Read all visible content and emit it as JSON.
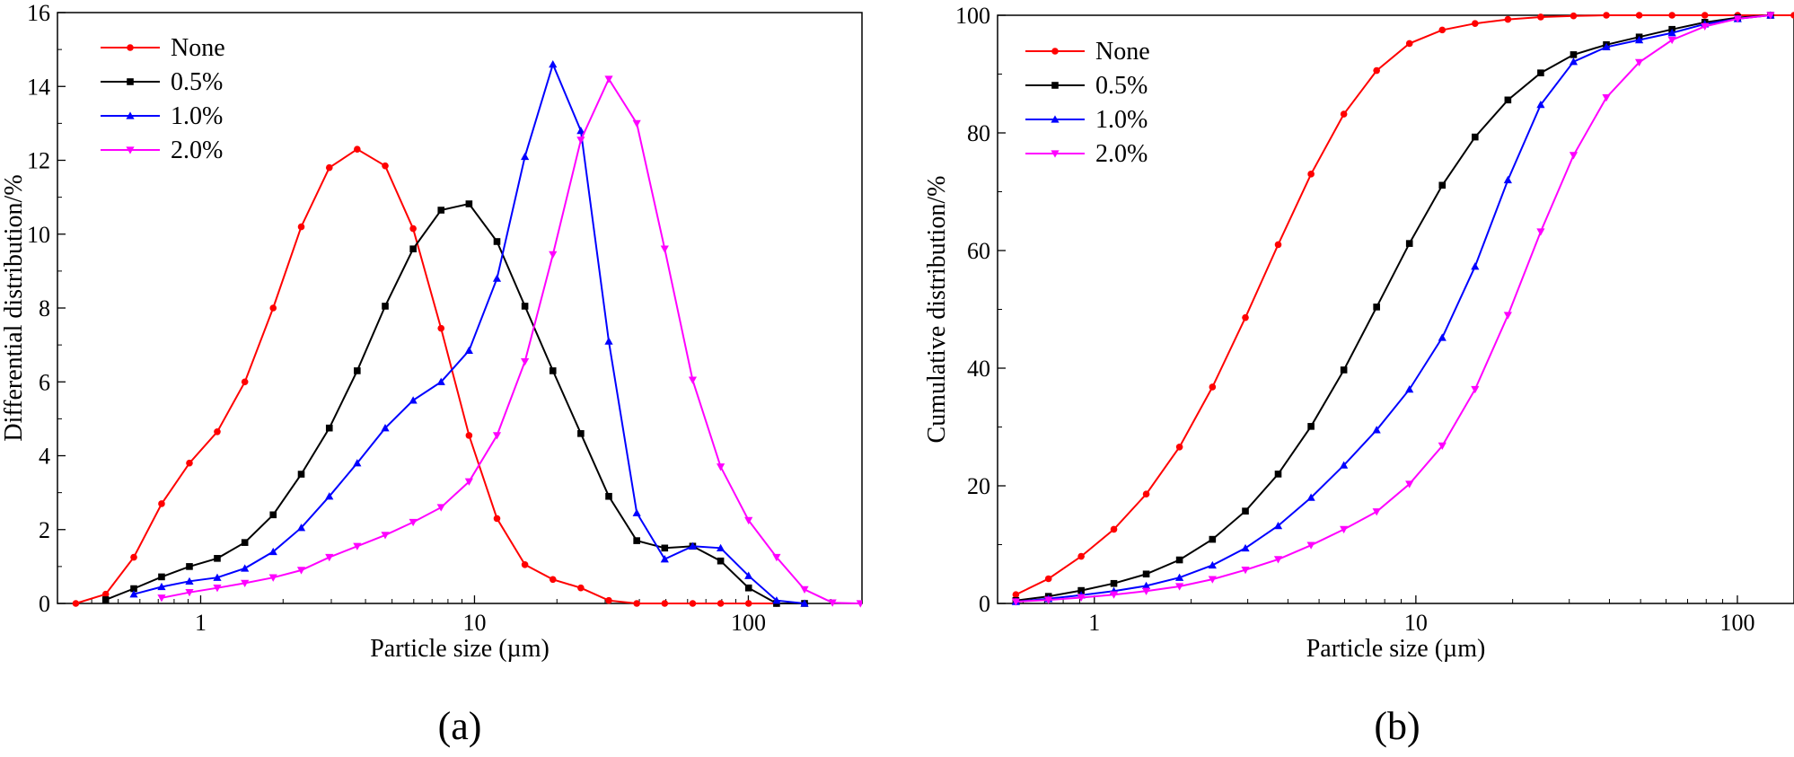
{
  "chart_data": [
    {
      "type": "line",
      "panel_label": "(a)",
      "xlabel": "Particle size (µm)",
      "ylabel": "Differential distribution/%",
      "xscale": "log",
      "xlim": [
        0.3,
        260
      ],
      "ylim": [
        0,
        16
      ],
      "xticks": [
        1,
        10,
        100
      ],
      "xtick_labels": [
        "1",
        "10",
        "100"
      ],
      "yticks": [
        0,
        2,
        4,
        6,
        8,
        10,
        12,
        14,
        16
      ],
      "ytick_labels": [
        "0",
        "2",
        "4",
        "6",
        "8",
        "10",
        "12",
        "14",
        "16"
      ],
      "legend_position": "top-left",
      "series": [
        {
          "name": "None",
          "color": "#ff0000",
          "marker": "circle",
          "x": [
            0.35,
            0.45,
            0.57,
            0.72,
            0.91,
            1.15,
            1.45,
            1.84,
            2.33,
            2.95,
            3.73,
            4.72,
            5.97,
            7.55,
            9.55,
            12.08,
            15.28,
            19.33,
            24.45,
            30.93,
            39.13,
            49.5,
            62.62,
            79.22,
            100.2,
            126.8
          ],
          "y": [
            0,
            0.25,
            1.25,
            2.7,
            3.8,
            4.65,
            6.0,
            8.0,
            10.2,
            11.8,
            12.3,
            11.85,
            10.15,
            7.45,
            4.55,
            2.3,
            1.05,
            0.65,
            0.42,
            0.08,
            0,
            0,
            0,
            0,
            0,
            0
          ]
        },
        {
          "name": "0.5%",
          "color": "#000000",
          "marker": "square",
          "x": [
            0.45,
            0.57,
            0.72,
            0.91,
            1.15,
            1.45,
            1.84,
            2.33,
            2.95,
            3.73,
            4.72,
            5.97,
            7.55,
            9.55,
            12.08,
            15.28,
            19.33,
            24.45,
            30.93,
            39.13,
            49.5,
            62.62,
            79.22,
            100.2,
            126.8,
            160.4
          ],
          "y": [
            0.1,
            0.4,
            0.72,
            1.0,
            1.22,
            1.65,
            2.4,
            3.5,
            4.75,
            6.3,
            8.05,
            9.6,
            10.65,
            10.82,
            9.8,
            8.05,
            6.3,
            4.6,
            2.9,
            1.7,
            1.5,
            1.55,
            1.15,
            0.42,
            0,
            0
          ]
        },
        {
          "name": "1.0%",
          "color": "#0000ff",
          "marker": "triangle-up",
          "x": [
            0.57,
            0.72,
            0.91,
            1.15,
            1.45,
            1.84,
            2.33,
            2.95,
            3.73,
            4.72,
            5.97,
            7.55,
            9.55,
            12.08,
            15.28,
            19.33,
            24.45,
            30.93,
            39.13,
            49.5,
            62.62,
            79.22,
            100.2,
            126.8,
            160.4
          ],
          "y": [
            0.25,
            0.45,
            0.6,
            0.7,
            0.95,
            1.4,
            2.05,
            2.9,
            3.8,
            4.75,
            5.5,
            6.0,
            6.85,
            8.8,
            12.1,
            14.6,
            12.8,
            7.1,
            2.45,
            1.2,
            1.55,
            1.5,
            0.75,
            0.08,
            0
          ]
        },
        {
          "name": "2.0%",
          "color": "#ff00ff",
          "marker": "triangle-down",
          "x": [
            0.72,
            0.91,
            1.15,
            1.45,
            1.84,
            2.33,
            2.95,
            3.73,
            4.72,
            5.97,
            7.55,
            9.55,
            12.08,
            15.28,
            19.33,
            24.45,
            30.93,
            39.13,
            49.5,
            62.62,
            79.22,
            100.2,
            126.8,
            160.4,
            202.9,
            256.6
          ],
          "y": [
            0.15,
            0.3,
            0.42,
            0.55,
            0.7,
            0.9,
            1.25,
            1.55,
            1.85,
            2.2,
            2.6,
            3.3,
            4.55,
            6.55,
            9.45,
            12.55,
            14.2,
            13.0,
            9.6,
            6.05,
            3.7,
            2.25,
            1.25,
            0.38,
            0.02,
            0
          ]
        }
      ]
    },
    {
      "type": "line",
      "panel_label": "(b)",
      "xlabel": "Particle size (µm)",
      "ylabel": "Cumulative distribution/%",
      "xscale": "log",
      "xlim": [
        0.5,
        150
      ],
      "ylim": [
        0,
        100
      ],
      "xticks": [
        1,
        10,
        100
      ],
      "xtick_labels": [
        "1",
        "10",
        "100"
      ],
      "yticks": [
        0,
        20,
        40,
        60,
        80,
        100
      ],
      "ytick_labels": [
        "0",
        "20",
        "40",
        "60",
        "80",
        "100"
      ],
      "legend_position": "top-left",
      "series": [
        {
          "name": "None",
          "color": "#ff0000",
          "marker": "circle",
          "x": [
            0.57,
            0.72,
            0.91,
            1.15,
            1.45,
            1.84,
            2.33,
            2.95,
            3.73,
            4.72,
            5.97,
            7.55,
            9.55,
            12.08,
            15.28,
            19.33,
            24.45,
            30.93,
            39.13,
            49.5,
            62.62,
            79.22,
            100.2,
            126.8,
            150
          ],
          "y": [
            1.5,
            4.2,
            8.0,
            12.6,
            18.6,
            26.6,
            36.8,
            48.6,
            61.0,
            73.0,
            83.2,
            90.6,
            95.2,
            97.5,
            98.6,
            99.3,
            99.7,
            99.9,
            100,
            100,
            100,
            100,
            100,
            100,
            100
          ]
        },
        {
          "name": "0.5%",
          "color": "#000000",
          "marker": "square",
          "x": [
            0.57,
            0.72,
            0.91,
            1.15,
            1.45,
            1.84,
            2.33,
            2.95,
            3.73,
            4.72,
            5.97,
            7.55,
            9.55,
            12.08,
            15.28,
            19.33,
            24.45,
            30.93,
            39.13,
            49.5,
            62.62,
            79.22,
            100.2,
            126.8
          ],
          "y": [
            0.5,
            1.2,
            2.2,
            3.4,
            5.0,
            7.4,
            10.9,
            15.7,
            22.0,
            30.1,
            39.7,
            50.4,
            61.2,
            71.1,
            79.3,
            85.6,
            90.2,
            93.3,
            95.0,
            96.3,
            97.6,
            98.8,
            99.6,
            100
          ]
        },
        {
          "name": "1.0%",
          "color": "#0000ff",
          "marker": "triangle-up",
          "x": [
            0.57,
            0.72,
            0.91,
            1.15,
            1.45,
            1.84,
            2.33,
            2.95,
            3.73,
            4.72,
            5.97,
            7.55,
            9.55,
            12.08,
            15.28,
            19.33,
            24.45,
            30.93,
            39.13,
            49.5,
            62.62,
            79.22,
            100.2,
            126.8
          ],
          "y": [
            0.3,
            0.8,
            1.4,
            2.1,
            3.0,
            4.4,
            6.5,
            9.4,
            13.2,
            18.0,
            23.5,
            29.5,
            36.4,
            45.2,
            57.3,
            72.0,
            84.8,
            92.1,
            94.6,
            95.8,
            97.0,
            98.5,
            99.4,
            100
          ]
        },
        {
          "name": "2.0%",
          "color": "#ff00ff",
          "marker": "triangle-down",
          "x": [
            0.57,
            0.72,
            0.91,
            1.15,
            1.45,
            1.84,
            2.33,
            2.95,
            3.73,
            4.72,
            5.97,
            7.55,
            9.55,
            12.08,
            15.28,
            19.33,
            24.45,
            30.93,
            39.13,
            49.5,
            62.62,
            79.22,
            100.2,
            126.8
          ],
          "y": [
            0.3,
            0.6,
            1.0,
            1.5,
            2.1,
            2.9,
            4.1,
            5.7,
            7.5,
            9.9,
            12.6,
            15.6,
            20.3,
            26.8,
            36.4,
            49.0,
            63.2,
            76.2,
            86.0,
            92.0,
            95.8,
            98.1,
            99.4,
            100
          ]
        }
      ]
    }
  ]
}
